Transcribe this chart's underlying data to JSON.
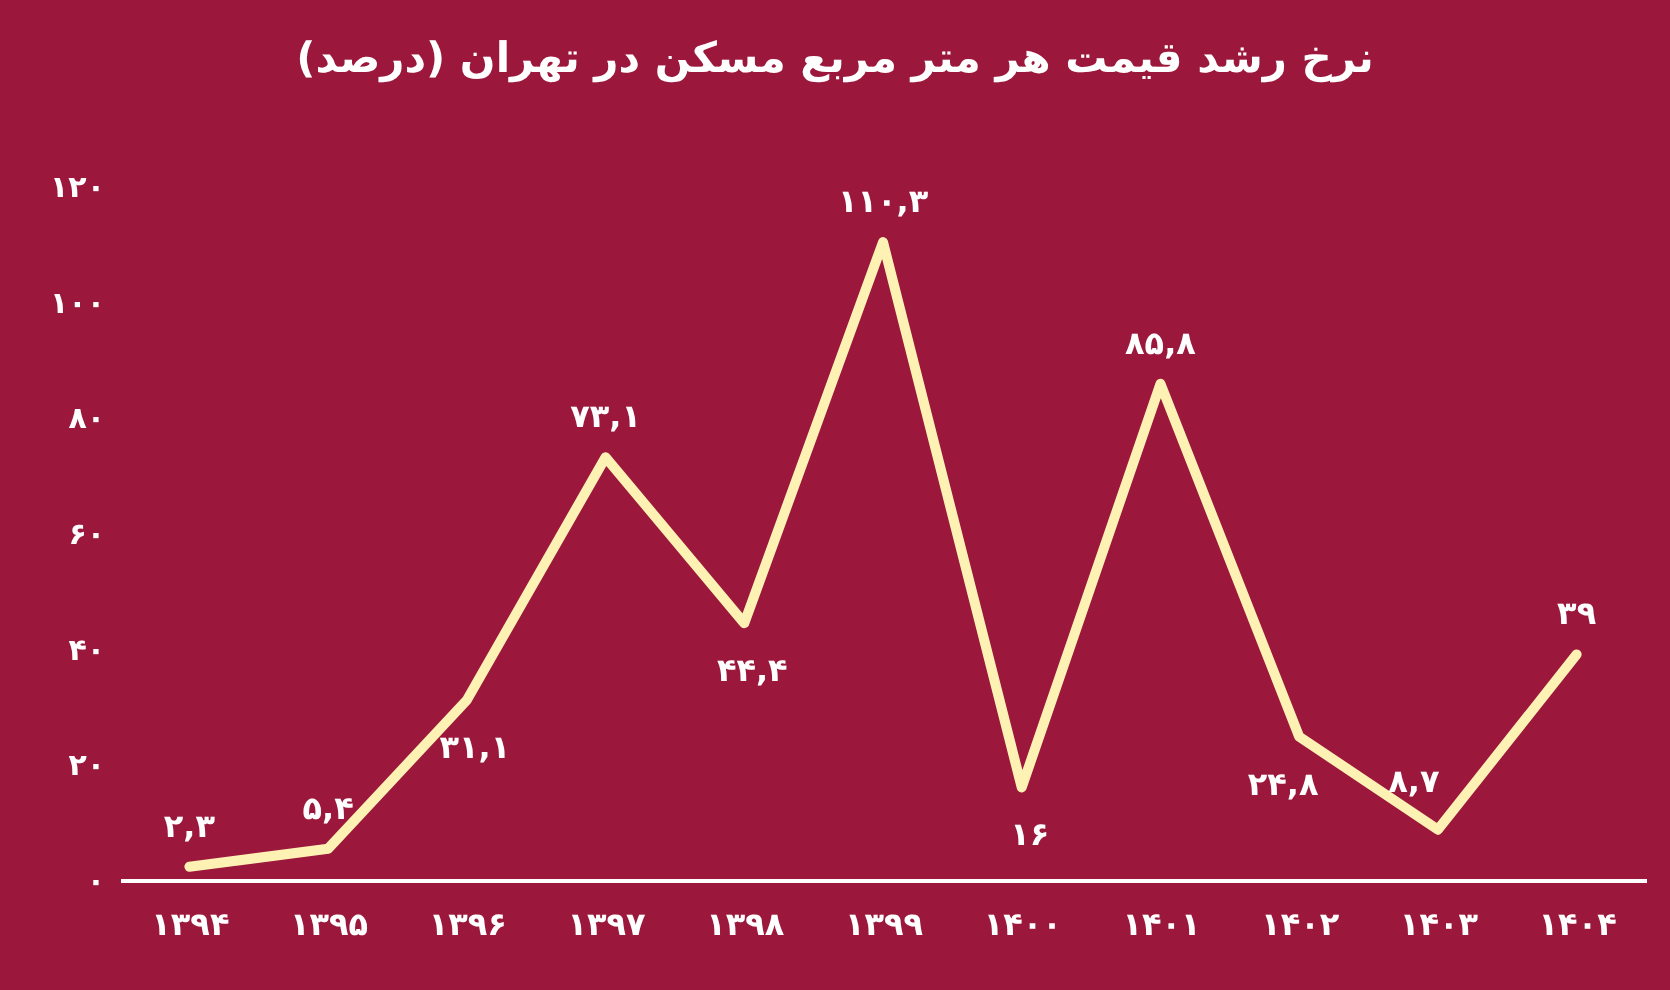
{
  "chart_data": {
    "type": "line",
    "title": "نرخ رشد قیمت هر متر مربع مسکن در تهران (درصد)",
    "categories": [
      "۱۳۹۴",
      "۱۳۹۵",
      "۱۳۹۶",
      "۱۳۹۷",
      "۱۳۹۸",
      "۱۳۹۹",
      "۱۴۰۰",
      "۱۴۰۱",
      "۱۴۰۲",
      "۱۴۰۳",
      "۱۴۰۴"
    ],
    "values": [
      2.3,
      5.4,
      31.1,
      73.1,
      44.4,
      110.3,
      16,
      85.8,
      24.8,
      8.7,
      39
    ],
    "value_labels": [
      "۲,۳",
      "۵,۴",
      "۳۱,۱",
      "۷۳,۱",
      "۴۴,۴",
      "۱۱۰,۳",
      "۱۶",
      "۸۵,۸",
      "۲۴,۸",
      "۸,۷",
      "۳۹"
    ],
    "color": "#fdf1b4",
    "ylim": [
      0,
      120
    ],
    "yticks": [
      {
        "value": 0,
        "label": "۰"
      },
      {
        "value": 20,
        "label": "۲۰"
      },
      {
        "value": 40,
        "label": "۴۰"
      },
      {
        "value": 60,
        "label": "۶۰"
      },
      {
        "value": 80,
        "label": "۸۰"
      },
      {
        "value": 100,
        "label": "۱۰۰"
      },
      {
        "value": 120,
        "label": "۱۲۰"
      }
    ],
    "grid": false
  }
}
